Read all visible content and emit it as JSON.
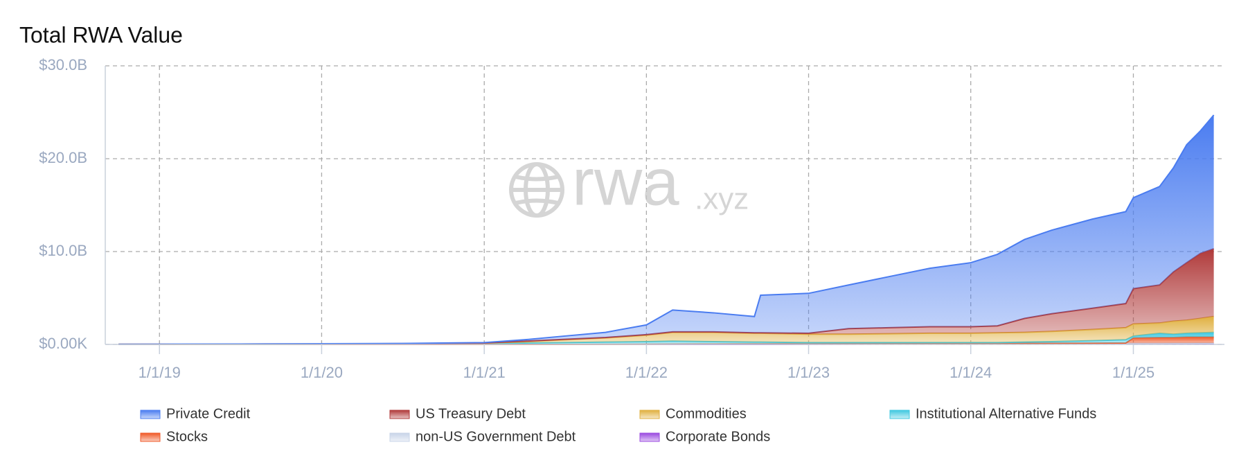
{
  "chart_data": {
    "type": "stacked_area",
    "title": "Total RWA Value",
    "watermark": {
      "main": "rwa",
      "suffix": ".xyz"
    },
    "x": [
      "10/1/18",
      "1/1/19",
      "7/1/19",
      "1/1/20",
      "7/1/20",
      "1/1/21",
      "4/1/21",
      "7/1/21",
      "10/1/21",
      "1/1/22",
      "3/1/22",
      "6/1/22",
      "9/1/22",
      "9/15/22",
      "1/1/23",
      "4/1/23",
      "7/1/23",
      "10/1/23",
      "1/1/24",
      "3/1/24",
      "5/1/24",
      "7/1/24",
      "10/1/24",
      "12/15/24",
      "1/1/25",
      "3/1/25",
      "4/1/25",
      "5/1/25",
      "6/1/25",
      "7/1/25"
    ],
    "xlim": [
      "9/1/18",
      "7/25/25"
    ],
    "xticks": [
      "1/1/19",
      "1/1/20",
      "1/1/21",
      "1/1/22",
      "1/1/23",
      "1/1/24",
      "1/1/25"
    ],
    "ylim": [
      0,
      30000000000
    ],
    "yticks": [
      {
        "value": 0,
        "label": "$0.00K"
      },
      {
        "value": 10000000000,
        "label": "$10.0B"
      },
      {
        "value": 20000000000,
        "label": "$20.0B"
      },
      {
        "value": 30000000000,
        "label": "$30.0B"
      }
    ],
    "grid": true,
    "legend": "bottom",
    "series": [
      {
        "name": "Private Credit",
        "color": "#4a7cf0",
        "values": [
          2000000.0,
          5000000.0,
          10000000.0,
          20000000.0,
          20000000.0,
          50000000.0,
          150000000.0,
          350000000.0,
          550000000.0,
          1050000000.0,
          2350000000.0,
          2050000000.0,
          1750000000.0,
          4050000000.0,
          4300000000.0,
          4700000000.0,
          5500000000.0,
          6300000000.0,
          6900000000.0,
          7700000000.0,
          8500000000.0,
          9000000000.0,
          9600000000.0,
          9900000000.0,
          9800000000.0,
          10600000000.0,
          11200000000.0,
          12700000000.0,
          13200000000.0,
          14400000000.0
        ]
      },
      {
        "name": "US Treasury Debt",
        "color": "#b03a3a",
        "values": [
          3000000.0,
          5000000.0,
          10000000.0,
          10000000.0,
          20000000.0,
          30000000.0,
          50000000.0,
          50000000.0,
          50000000.0,
          50000000.0,
          50000000.0,
          50000000.0,
          50000000.0,
          50000000.0,
          100000000.0,
          600000000.0,
          650000000.0,
          700000000.0,
          700000000.0,
          750000000.0,
          1500000000.0,
          1900000000.0,
          2300000000.0,
          2600000000.0,
          3800000000.0,
          4100000000.0,
          5300000000.0,
          6200000000.0,
          7000000000.0,
          7300000000.0
        ]
      },
      {
        "name": "Commodities",
        "color": "#e0b040",
        "values": [
          5000000.0,
          5000000.0,
          10000000.0,
          10000000.0,
          20000000.0,
          40000000.0,
          150000000.0,
          300000000.0,
          450000000.0,
          700000000.0,
          950000000.0,
          1000000000.0,
          950000000.0,
          950000000.0,
          900000000.0,
          900000000.0,
          950000000.0,
          1000000000.0,
          1000000000.0,
          1050000000.0,
          1050000000.0,
          1100000000.0,
          1200000000.0,
          1300000000.0,
          1300000000.0,
          1100000000.0,
          1400000000.0,
          1400000000.0,
          1550000000.0,
          1700000000.0
        ]
      },
      {
        "name": "Institutional Alternative Funds",
        "color": "#40c8e0",
        "values": [
          10000000.0,
          15000000.0,
          20000000.0,
          30000000.0,
          40000000.0,
          80000000.0,
          150000000.0,
          200000000.0,
          240000000.0,
          280000000.0,
          320000000.0,
          260000000.0,
          200000000.0,
          200000000.0,
          140000000.0,
          130000000.0,
          120000000.0,
          110000000.0,
          100000000.0,
          100000000.0,
          140000000.0,
          180000000.0,
          270000000.0,
          350000000.0,
          200000000.0,
          450000000.0,
          350000000.0,
          400000000.0,
          450000000.0,
          500000000.0
        ]
      },
      {
        "name": "Stocks",
        "color": "#f05a28",
        "values": [
          0,
          0,
          0,
          0,
          0,
          0,
          0,
          0,
          0,
          0,
          0,
          0,
          0,
          0,
          0,
          0,
          0,
          0,
          0,
          0,
          0,
          10000000.0,
          10000000.0,
          30000000.0,
          570000000.0,
          620000000.0,
          610000000.0,
          660000000.0,
          650000000.0,
          650000000.0
        ]
      },
      {
        "name": "non-US Government Debt",
        "color": "#c8d4e8",
        "values": [
          0,
          0,
          0,
          0,
          0,
          0,
          0,
          0,
          10000000.0,
          20000000.0,
          30000000.0,
          40000000.0,
          50000000.0,
          50000000.0,
          40000000.0,
          40000000.0,
          40000000.0,
          40000000.0,
          50000000.0,
          50000000.0,
          50000000.0,
          50000000.0,
          50000000.0,
          50000000.0,
          50000000.0,
          50000000.0,
          50000000.0,
          50000000.0,
          50000000.0,
          50000000.0
        ]
      },
      {
        "name": "Corporate Bonds",
        "color": "#9b4be0",
        "values": [
          0,
          0,
          0,
          0,
          0,
          0,
          0,
          0,
          0,
          0,
          0,
          0,
          0,
          0,
          20000000.0,
          30000000.0,
          40000000.0,
          50000000.0,
          50000000.0,
          50000000.0,
          60000000.0,
          60000000.0,
          70000000.0,
          70000000.0,
          80000000.0,
          80000000.0,
          90000000.0,
          90000000.0,
          100000000.0,
          100000000.0
        ]
      }
    ]
  }
}
